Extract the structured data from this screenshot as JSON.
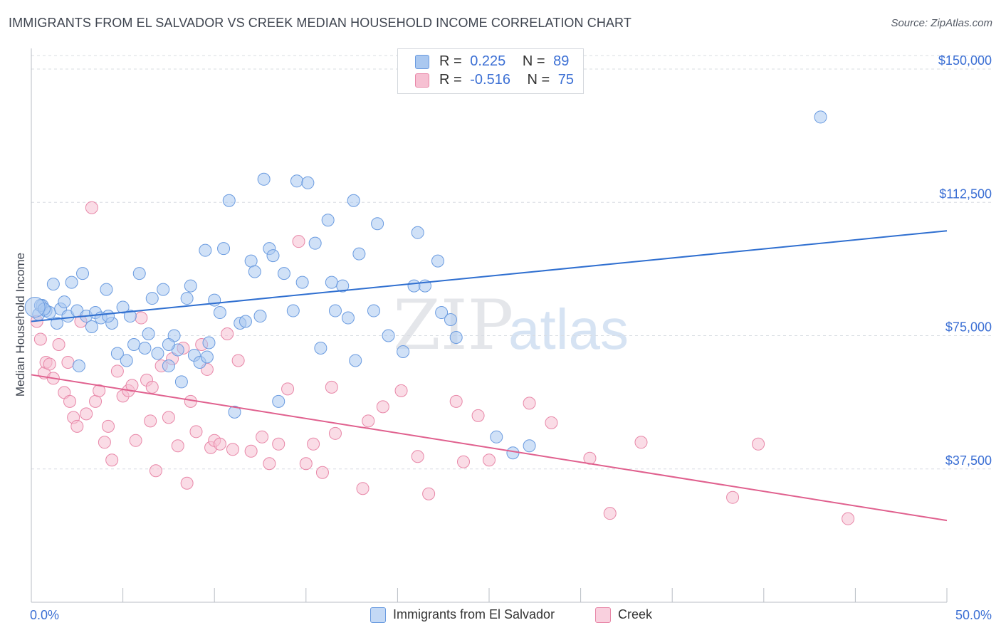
{
  "header": {
    "title": "IMMIGRANTS FROM EL SALVADOR VS CREEK MEDIAN HOUSEHOLD INCOME CORRELATION CHART",
    "source": "Source: ZipAtlas.com"
  },
  "watermark": {
    "zip": "ZIP",
    "atlas": "atlas"
  },
  "legend_top": [
    {
      "r_label": "R =",
      "r_value": "0.225",
      "n_label": "N =",
      "n_value": "89"
    },
    {
      "r_label": "R =",
      "r_value": "-0.516",
      "n_label": "N =",
      "n_value": "75"
    }
  ],
  "colors": {
    "blue_fill": "#aac8f0",
    "blue_stroke": "#6a9be0",
    "blue_line": "#2f6fd0",
    "pink_fill": "#f6c0d2",
    "pink_stroke": "#e887a8",
    "pink_line": "#e0608e",
    "axis_text": "#3b6fd4",
    "grid": "#d8dce2"
  },
  "chart_data": {
    "type": "scatter",
    "title": "IMMIGRANTS FROM EL SALVADOR VS CREEK MEDIAN HOUSEHOLD INCOME CORRELATION CHART",
    "xlabel": "",
    "ylabel": "Median Household Income",
    "xlim": [
      0,
      50
    ],
    "ylim": [
      0,
      150000
    ],
    "x_tick_labels": [
      "0.0%",
      "50.0%"
    ],
    "y_ticks": [
      37500,
      75000,
      112500,
      150000
    ],
    "y_tick_labels": [
      "$37,500",
      "$75,000",
      "$112,500",
      "$150,000"
    ],
    "grid": "horizontal dashed",
    "legend_position": "top-center and bottom",
    "series": [
      {
        "name": "Immigrants from El Salvador",
        "color": "#aac8f0",
        "trend": {
          "x": [
            0,
            50
          ],
          "y": [
            79000,
            104500
          ]
        },
        "points": [
          [
            0.4,
            81000
          ],
          [
            0.6,
            83500
          ],
          [
            0.8,
            82000
          ],
          [
            1.0,
            81500
          ],
          [
            1.2,
            89500
          ],
          [
            1.4,
            78500
          ],
          [
            1.6,
            82500
          ],
          [
            1.8,
            84500
          ],
          [
            2.0,
            80500
          ],
          [
            2.2,
            90000
          ],
          [
            2.5,
            82000
          ],
          [
            2.8,
            92500
          ],
          [
            3.0,
            80500
          ],
          [
            3.3,
            77500
          ],
          [
            3.5,
            81500
          ],
          [
            3.8,
            80000
          ],
          [
            4.1,
            88000
          ],
          [
            4.4,
            78500
          ],
          [
            4.7,
            70000
          ],
          [
            5.0,
            83000
          ],
          [
            5.2,
            68000
          ],
          [
            5.4,
            80500
          ],
          [
            5.6,
            72500
          ],
          [
            5.9,
            92500
          ],
          [
            6.2,
            71500
          ],
          [
            6.4,
            75500
          ],
          [
            6.6,
            85500
          ],
          [
            6.9,
            70000
          ],
          [
            7.2,
            88000
          ],
          [
            7.5,
            66500
          ],
          [
            7.8,
            75000
          ],
          [
            8.0,
            71000
          ],
          [
            8.2,
            62000
          ],
          [
            8.5,
            85500
          ],
          [
            8.7,
            89000
          ],
          [
            8.9,
            69500
          ],
          [
            9.2,
            67500
          ],
          [
            9.5,
            99000
          ],
          [
            9.7,
            73000
          ],
          [
            10.0,
            85000
          ],
          [
            10.3,
            81500
          ],
          [
            10.5,
            99500
          ],
          [
            10.8,
            113000
          ],
          [
            11.1,
            53500
          ],
          [
            11.4,
            78500
          ],
          [
            11.7,
            79000
          ],
          [
            12.0,
            96000
          ],
          [
            12.2,
            93000
          ],
          [
            12.5,
            80500
          ],
          [
            12.7,
            119000
          ],
          [
            13.0,
            99500
          ],
          [
            13.2,
            97500
          ],
          [
            13.5,
            56500
          ],
          [
            13.8,
            92500
          ],
          [
            14.3,
            82000
          ],
          [
            14.5,
            118500
          ],
          [
            14.8,
            90000
          ],
          [
            15.1,
            118000
          ],
          [
            15.5,
            101000
          ],
          [
            15.8,
            71500
          ],
          [
            16.2,
            107500
          ],
          [
            16.4,
            90000
          ],
          [
            16.6,
            82000
          ],
          [
            17.0,
            89000
          ],
          [
            17.3,
            80000
          ],
          [
            17.6,
            113000
          ],
          [
            17.7,
            68000
          ],
          [
            17.9,
            98000
          ],
          [
            18.7,
            82000
          ],
          [
            18.9,
            106500
          ],
          [
            19.5,
            75000
          ],
          [
            20.3,
            70500
          ],
          [
            20.9,
            89000
          ],
          [
            21.1,
            104000
          ],
          [
            21.5,
            89000
          ],
          [
            22.2,
            96000
          ],
          [
            22.4,
            81500
          ],
          [
            22.9,
            79500
          ],
          [
            23.2,
            74500
          ],
          [
            25.4,
            46500
          ],
          [
            26.3,
            42000
          ],
          [
            27.2,
            44000
          ],
          [
            43.1,
            136500
          ],
          [
            0.5,
            83500
          ],
          [
            4.2,
            80500
          ],
          [
            9.6,
            69000
          ],
          [
            2.6,
            66500
          ],
          [
            0.7,
            82500
          ],
          [
            7.5,
            72500
          ]
        ]
      },
      {
        "name": "Creek",
        "color": "#f6c0d2",
        "trend": {
          "x": [
            0,
            50
          ],
          "y": [
            64000,
            23000
          ]
        },
        "points": [
          [
            0.3,
            79000
          ],
          [
            0.5,
            74000
          ],
          [
            0.7,
            64500
          ],
          [
            0.8,
            67500
          ],
          [
            1.0,
            67000
          ],
          [
            1.2,
            63000
          ],
          [
            1.5,
            72500
          ],
          [
            1.8,
            59000
          ],
          [
            2.0,
            67500
          ],
          [
            2.1,
            56500
          ],
          [
            2.3,
            52000
          ],
          [
            2.5,
            49500
          ],
          [
            2.7,
            79000
          ],
          [
            3.0,
            53000
          ],
          [
            3.3,
            111000
          ],
          [
            3.5,
            56500
          ],
          [
            3.7,
            59500
          ],
          [
            4.0,
            45000
          ],
          [
            4.2,
            49500
          ],
          [
            4.4,
            40000
          ],
          [
            4.7,
            65000
          ],
          [
            5.0,
            58000
          ],
          [
            5.3,
            59500
          ],
          [
            5.5,
            61000
          ],
          [
            5.7,
            45500
          ],
          [
            6.0,
            80000
          ],
          [
            6.3,
            62500
          ],
          [
            6.5,
            51000
          ],
          [
            6.6,
            60500
          ],
          [
            6.8,
            37000
          ],
          [
            7.1,
            66500
          ],
          [
            7.5,
            52000
          ],
          [
            7.7,
            68500
          ],
          [
            8.0,
            44000
          ],
          [
            8.3,
            71500
          ],
          [
            8.5,
            33500
          ],
          [
            8.7,
            56500
          ],
          [
            9.0,
            48000
          ],
          [
            9.3,
            72500
          ],
          [
            9.6,
            65500
          ],
          [
            9.8,
            43500
          ],
          [
            10.0,
            45500
          ],
          [
            10.3,
            44500
          ],
          [
            10.7,
            75500
          ],
          [
            11.0,
            43000
          ],
          [
            11.3,
            68000
          ],
          [
            12.0,
            42500
          ],
          [
            12.6,
            46500
          ],
          [
            13.0,
            39000
          ],
          [
            13.5,
            44500
          ],
          [
            14.0,
            60000
          ],
          [
            14.6,
            101500
          ],
          [
            15.0,
            39000
          ],
          [
            15.4,
            44500
          ],
          [
            15.9,
            36500
          ],
          [
            16.4,
            60500
          ],
          [
            16.6,
            47500
          ],
          [
            18.1,
            32000
          ],
          [
            18.4,
            51000
          ],
          [
            19.2,
            55000
          ],
          [
            20.2,
            59500
          ],
          [
            21.1,
            41000
          ],
          [
            21.7,
            30500
          ],
          [
            23.2,
            56500
          ],
          [
            23.6,
            39500
          ],
          [
            24.4,
            52500
          ],
          [
            25.0,
            40000
          ],
          [
            27.2,
            56000
          ],
          [
            28.4,
            50500
          ],
          [
            30.5,
            40500
          ],
          [
            31.6,
            25000
          ],
          [
            33.3,
            45000
          ],
          [
            38.3,
            29500
          ],
          [
            39.7,
            44500
          ],
          [
            44.6,
            23500
          ]
        ]
      }
    ]
  },
  "bottom_legend": [
    {
      "label": "Immigrants from El Salvador"
    },
    {
      "label": "Creek"
    }
  ]
}
